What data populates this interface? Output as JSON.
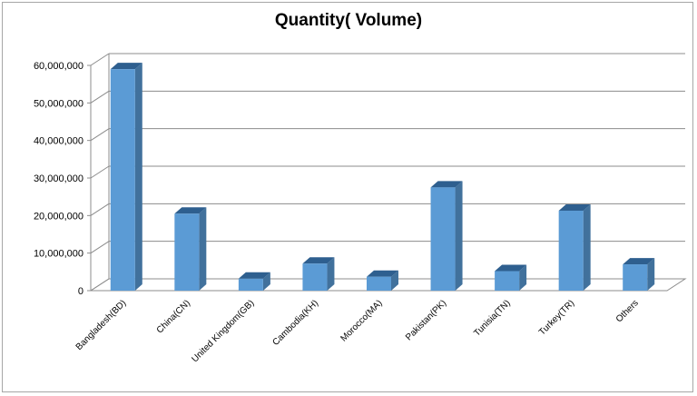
{
  "chart_data": {
    "type": "bar",
    "title": "Quantity( Volume)",
    "categories": [
      "Bangladesh(BD)",
      "China(CN)",
      "United Kingdom(GB)",
      "Cambodia(KH)",
      "Morocco(MA)",
      "Pakistan(PK)",
      "Tunisia(TN)",
      "Turkey(TR)",
      "Others"
    ],
    "values": [
      59000000,
      20500000,
      3200000,
      7200000,
      3700000,
      27500000,
      5200000,
      21300000,
      7000000
    ],
    "ylim": [
      0,
      60000000
    ],
    "yticks": [
      0,
      10000000,
      20000000,
      30000000,
      40000000,
      50000000,
      60000000
    ],
    "ytick_labels": [
      "0",
      "10,000,000",
      "20,000,000",
      "30,000,000",
      "40,000,000",
      "50,000,000",
      "60,000,000"
    ],
    "grid": true,
    "bar_color": "#5b9bd5",
    "bar_side_color": "#41719c",
    "bar_top_color": "#2e5f8f"
  }
}
